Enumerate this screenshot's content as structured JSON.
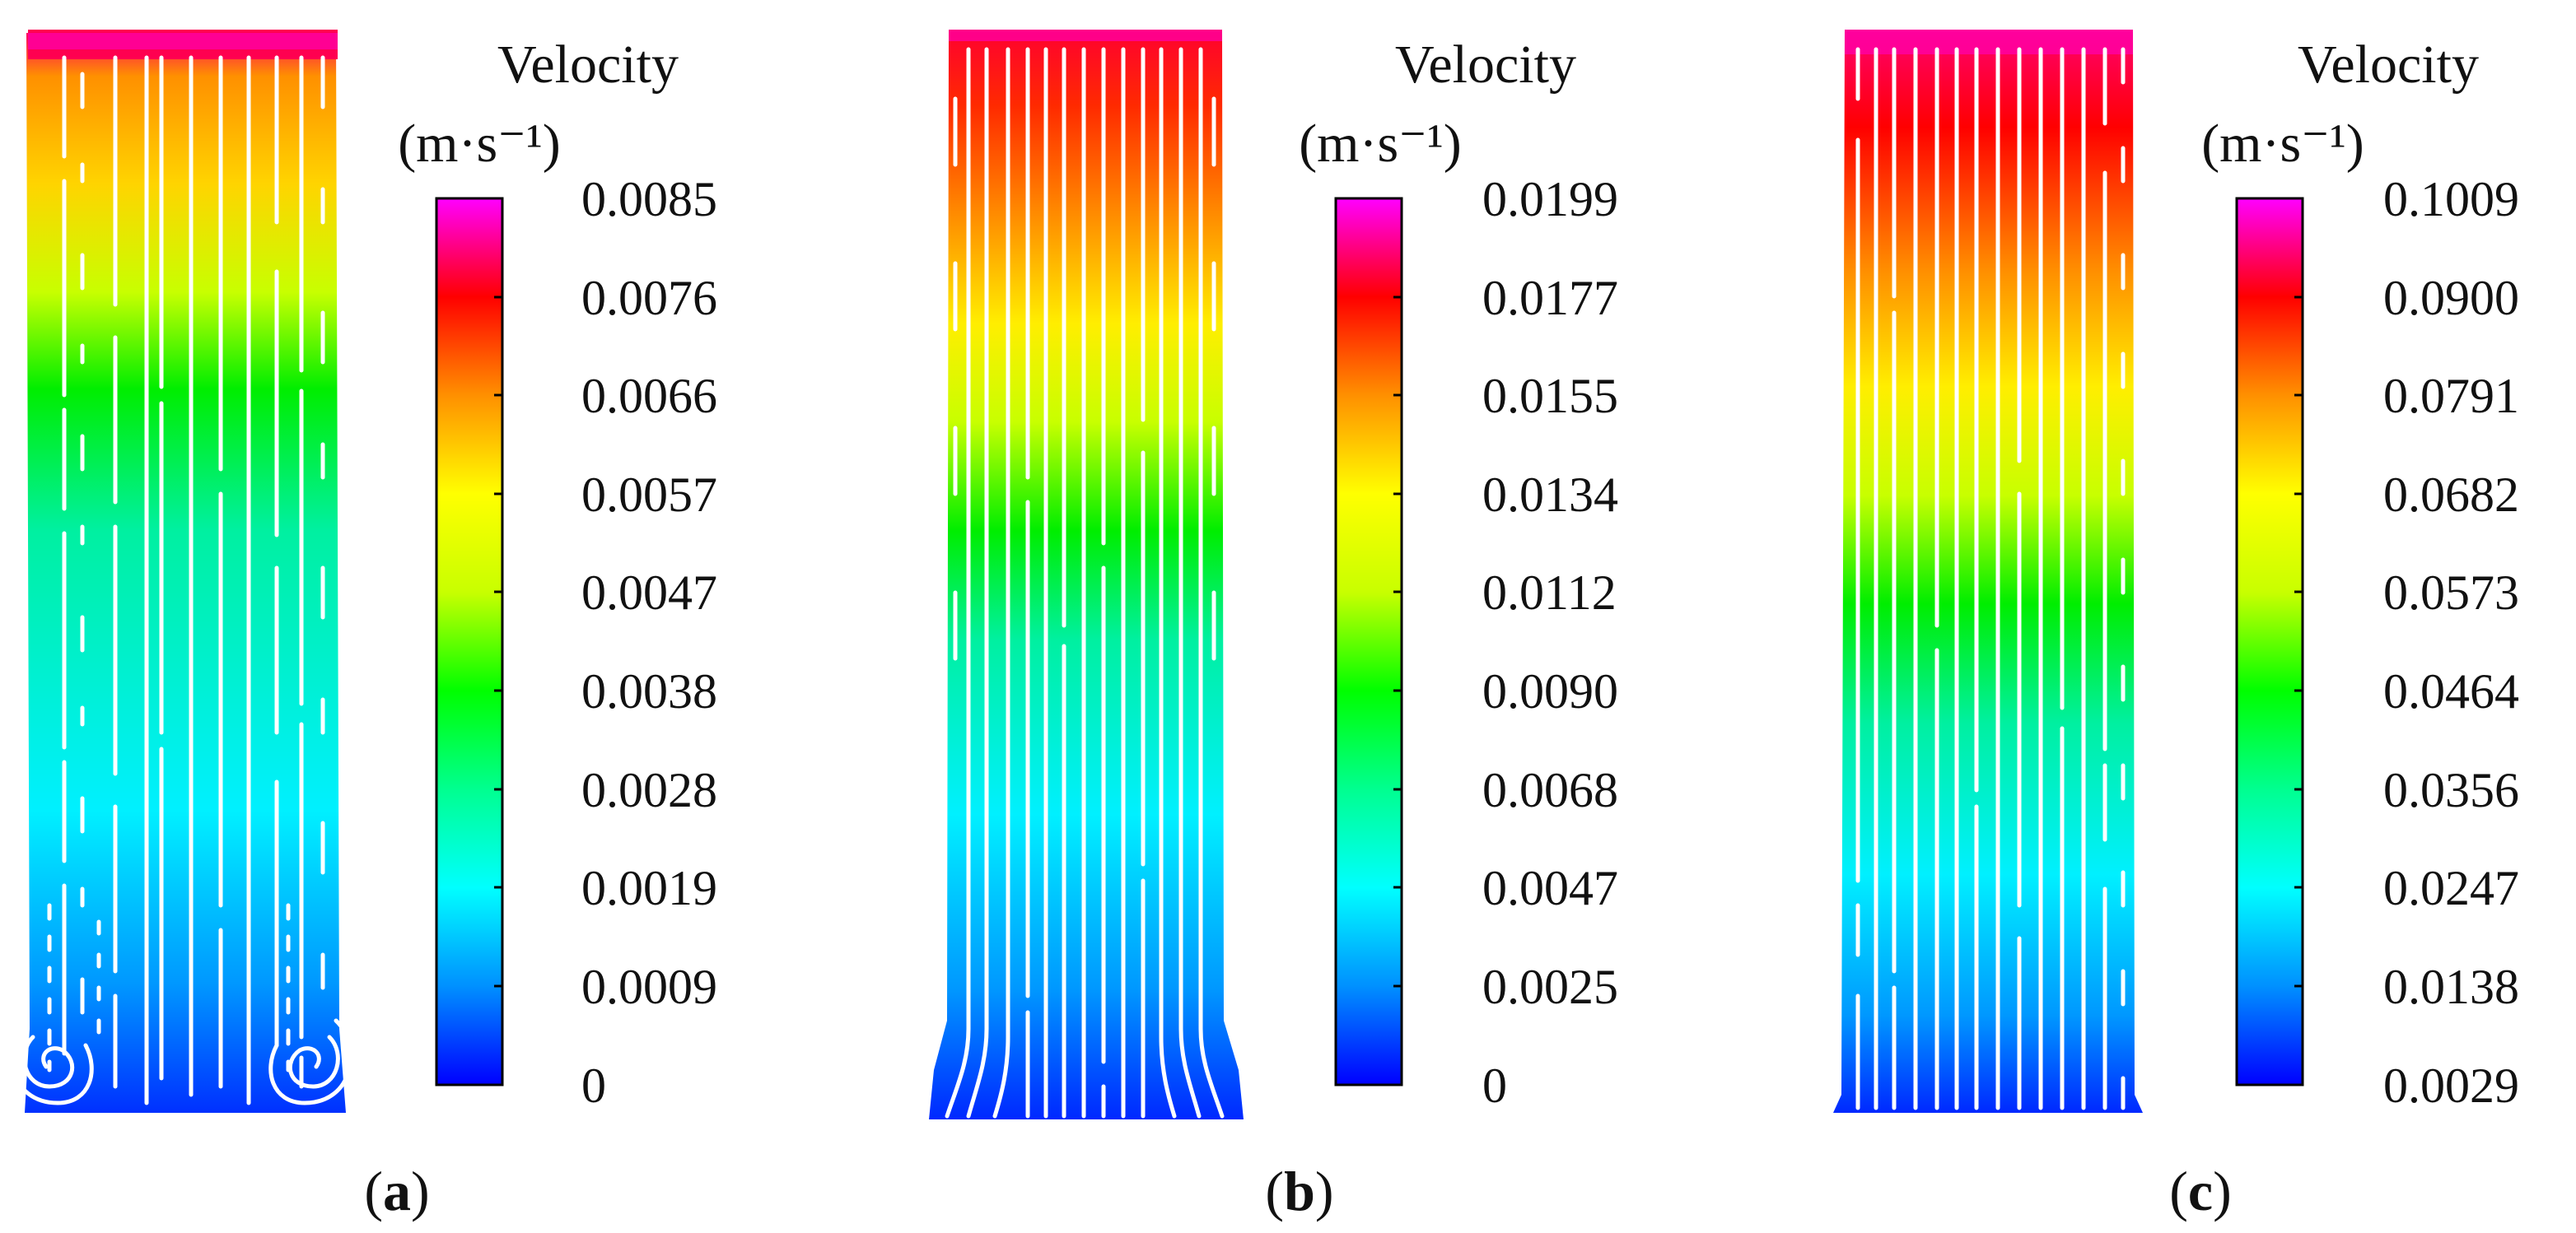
{
  "figure": {
    "colorscale": [
      "#0000ff",
      "#0090ff",
      "#00ffff",
      "#00ff90",
      "#00ff00",
      "#c8ff00",
      "#ffff00",
      "#ff9000",
      "#ff0000",
      "#ff00ff"
    ],
    "panels": [
      {
        "id": "a",
        "label": "a",
        "legend_title": "Velocity",
        "legend_unit": "(m·s⁻¹)",
        "ticks": [
          "0.0085",
          "0.0076",
          "0.0066",
          "0.0057",
          "0.0047",
          "0.0038",
          "0.0028",
          "0.0019",
          "0.0009",
          "0"
        ]
      },
      {
        "id": "b",
        "label": "b",
        "legend_title": "Velocity",
        "legend_unit": "(m·s⁻¹)",
        "ticks": [
          "0.0199",
          "0.0177",
          "0.0155",
          "0.0134",
          "0.0112",
          "0.0090",
          "0.0068",
          "0.0047",
          "0.0025",
          "0"
        ]
      },
      {
        "id": "c",
        "label": "c",
        "legend_title": "Velocity",
        "legend_unit": "(m·s⁻¹)",
        "ticks": [
          "0.1009",
          "0.0900",
          "0.0791",
          "0.0682",
          "0.0573",
          "0.0464",
          "0.0356",
          "0.0247",
          "0.0138",
          "0.0029"
        ]
      }
    ]
  }
}
